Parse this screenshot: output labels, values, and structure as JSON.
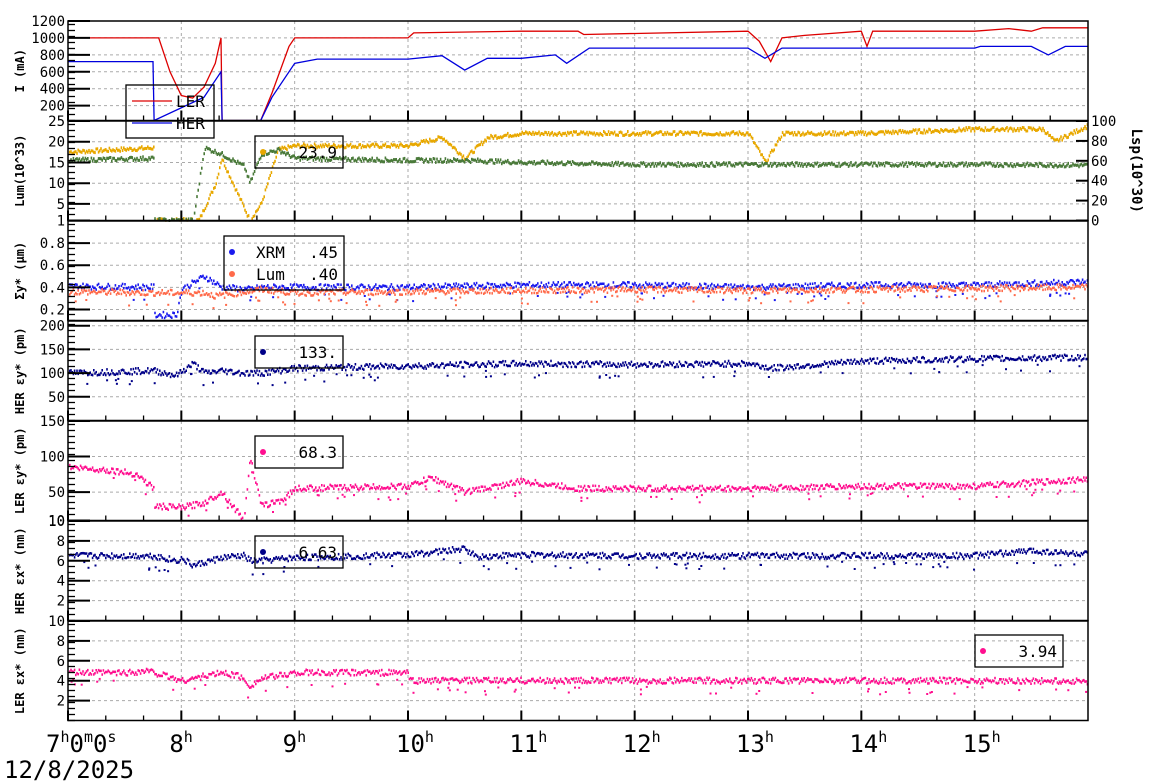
{
  "chart_data": {
    "type": "line",
    "title": "",
    "date": "12/8/2025",
    "xlabel": "",
    "x_range_hours": [
      7,
      16
    ],
    "x_ticks": [
      "7h0m0s",
      "8h",
      "9h",
      "10h",
      "11h",
      "12h",
      "13h",
      "14h",
      "15h"
    ],
    "grid": true,
    "panels": [
      {
        "id": "current",
        "ylabel": "I (mA)",
        "ylim": [
          25,
          1200
        ],
        "yticks": [
          "200",
          "400",
          "600",
          "800",
          "1000",
          "1200"
        ],
        "legend": [
          {
            "name": "LER",
            "color": "#dd0000"
          },
          {
            "name": "HER",
            "color": "#0000dd"
          }
        ],
        "series": [
          {
            "name": "LER",
            "color": "#dd0000",
            "x": [
              7.0,
              7.8,
              7.9,
              8.0,
              8.1,
              8.2,
              8.3,
              8.35,
              8.36,
              8.7,
              8.8,
              8.95,
              9.0,
              10.0,
              10.05,
              11.0,
              11.5,
              11.55,
              13.0,
              13.1,
              13.2,
              13.3,
              13.5,
              14.0,
              14.05,
              14.1,
              15.0,
              15.3,
              15.5,
              15.6,
              16.0
            ],
            "values": [
              1000,
              1000,
              600,
              320,
              290,
              420,
              700,
              1000,
              25,
              25,
              350,
              900,
              1000,
              1000,
              1060,
              1080,
              1080,
              1040,
              1080,
              960,
              720,
              1000,
              1030,
              1080,
              900,
              1080,
              1080,
              1110,
              1080,
              1120,
              1120
            ]
          },
          {
            "name": "HER",
            "color": "#0000dd",
            "x": [
              7.0,
              7.75,
              7.76,
              8.2,
              8.35,
              8.36,
              8.7,
              8.8,
              9.0,
              9.2,
              10.0,
              10.3,
              10.5,
              10.7,
              11.0,
              11.3,
              11.4,
              11.6,
              13.0,
              13.15,
              13.3,
              14.0,
              15.0,
              15.05,
              15.5,
              15.65,
              15.8,
              16.0
            ],
            "values": [
              720,
              720,
              25,
              300,
              600,
              25,
              25,
              300,
              700,
              750,
              750,
              790,
              620,
              760,
              760,
              800,
              700,
              880,
              880,
              760,
              880,
              880,
              880,
              900,
              900,
              800,
              900,
              900
            ]
          }
        ]
      },
      {
        "id": "luminosity",
        "ylabel": "Lum(10^33)",
        "ylim": [
          1,
          25
        ],
        "yticks": [
          "1",
          "5",
          "10",
          "15",
          "20",
          "25"
        ],
        "y2label": "Lsp(10^30)",
        "y2lim": [
          0,
          100
        ],
        "y2ticks": [
          "0",
          "20",
          "40",
          "60",
          "80",
          "100"
        ],
        "legend": [
          {
            "name": "",
            "value": "23.9",
            "color": "#e8a800"
          }
        ],
        "series": [
          {
            "name": "Lum",
            "color": "#e8a800",
            "axis": "left",
            "x": [
              7.0,
              7.75,
              7.76,
              8.15,
              8.3,
              8.35,
              8.6,
              8.7,
              8.85,
              9.0,
              10.0,
              10.3,
              10.5,
              10.7,
              11.0,
              12.0,
              13.0,
              13.15,
              13.3,
              14.0,
              15.0,
              15.6,
              15.7,
              16.0
            ],
            "values": [
              17.5,
              18.5,
              1,
              1,
              10,
              16,
              1,
              5,
              18,
              19,
              19,
              21,
              16,
              21,
              22,
              22,
              22,
              15,
              22,
              22,
              23,
              23,
              20,
              23.9
            ]
          },
          {
            "name": "Lsp",
            "color": "#4a7a3a",
            "axis": "left",
            "x": [
              7.0,
              7.75,
              7.76,
              8.1,
              8.2,
              8.35,
              8.55,
              8.6,
              8.7,
              8.85,
              9.0,
              10.0,
              10.5,
              11.0,
              12.0,
              13.0,
              14.0,
              15.0,
              16.0
            ],
            "values": [
              15.5,
              16,
              1,
              1,
              18.5,
              17,
              14,
              10,
              17,
              18,
              16,
              15.5,
              15.5,
              15,
              14.5,
              14.5,
              14.5,
              14.5,
              14.3
            ]
          }
        ]
      },
      {
        "id": "sigma_y",
        "ylabel": "Σy* (μm)",
        "ylim": [
          0.1,
          1.0
        ],
        "yticks": [
          "0.2",
          "0.4",
          "0.6",
          "0.8"
        ],
        "legend": [
          {
            "name": "XRM",
            "value": ".45",
            "color": "#1a1aee"
          },
          {
            "name": "Lum",
            "value": ".40",
            "color": "#ff6a4a"
          }
        ],
        "series": [
          {
            "name": "XRM",
            "color": "#1a1aee",
            "x": [
              7.0,
              7.75,
              7.76,
              7.95,
              8.0,
              8.2,
              8.35,
              8.6,
              8.7,
              9.0,
              10.0,
              11.0,
              12.0,
              13.0,
              14.0,
              15.0,
              16.0
            ],
            "values": [
              0.41,
              0.4,
              0.15,
              0.15,
              0.38,
              0.5,
              0.4,
              0.38,
              0.4,
              0.4,
              0.4,
              0.42,
              0.42,
              0.4,
              0.42,
              0.42,
              0.45
            ]
          },
          {
            "name": "Lum",
            "color": "#ff6a4a",
            "x": [
              7.0,
              7.75,
              8.2,
              8.3,
              8.7,
              9.0,
              10.0,
              11.0,
              12.0,
              13.0,
              14.0,
              15.0,
              16.0
            ],
            "values": [
              0.36,
              0.35,
              0.35,
              0.32,
              0.38,
              0.35,
              0.36,
              0.37,
              0.38,
              0.37,
              0.38,
              0.39,
              0.4
            ]
          }
        ]
      },
      {
        "id": "her_emit_y",
        "ylabel": "HER εy* (pm)",
        "ylim": [
          0,
          210
        ],
        "yticks": [
          "50",
          "100",
          "150",
          "200"
        ],
        "legend": [
          {
            "name": "",
            "value": "133.",
            "color": "#000088"
          }
        ],
        "series": [
          {
            "name": "HER εy*",
            "color": "#000088",
            "x": [
              7.0,
              7.75,
              7.95,
              8.1,
              8.2,
              8.35,
              8.55,
              8.7,
              9.0,
              10.0,
              11.0,
              12.0,
              13.0,
              13.2,
              14.0,
              15.0,
              16.0
            ],
            "values": [
              100,
              105,
              95,
              120,
              100,
              105,
              100,
              100,
              110,
              115,
              120,
              118,
              120,
              110,
              125,
              130,
              133
            ]
          }
        ]
      },
      {
        "id": "ler_emit_y",
        "ylabel": "LER εy* (pm)",
        "ylim": [
          10,
          150
        ],
        "yticks": [
          "10",
          "50",
          "100",
          "150"
        ],
        "legend": [
          {
            "name": "",
            "value": "68.3",
            "color": "#ff0f8f"
          }
        ],
        "series": [
          {
            "name": "LER εy*",
            "color": "#ff0f8f",
            "x": [
              7.0,
              7.4,
              7.6,
              7.75,
              7.76,
              8.0,
              8.2,
              8.35,
              8.55,
              8.6,
              8.7,
              8.9,
              9.0,
              10.0,
              10.2,
              10.5,
              11.0,
              11.5,
              12.0,
              13.0,
              14.0,
              15.0,
              16.0
            ],
            "values": [
              85,
              80,
              75,
              55,
              30,
              28,
              35,
              50,
              10,
              100,
              30,
              40,
              55,
              58,
              70,
              50,
              65,
              55,
              55,
              55,
              58,
              58,
              68.3
            ]
          }
        ]
      },
      {
        "id": "her_emit_x",
        "ylabel": "HER εx* (nm)",
        "ylim": [
          0,
          10
        ],
        "yticks": [
          "2",
          "4",
          "6",
          "8",
          "10"
        ],
        "legend": [
          {
            "name": "",
            "value": "6.63",
            "color": "#000088"
          }
        ],
        "series": [
          {
            "name": "HER εx*",
            "color": "#000088",
            "x": [
              7.0,
              7.75,
              7.95,
              8.0,
              8.1,
              8.35,
              8.55,
              8.6,
              8.7,
              9.0,
              10.0,
              10.5,
              10.6,
              11.0,
              12.0,
              13.0,
              14.0,
              15.0,
              15.5,
              16.0
            ],
            "values": [
              6.5,
              6.5,
              6.0,
              6.2,
              5.5,
              6.3,
              6.5,
              6.0,
              6.0,
              6.3,
              6.6,
              7.2,
              6.4,
              6.6,
              6.5,
              6.5,
              6.5,
              6.5,
              7.0,
              6.63
            ]
          }
        ]
      },
      {
        "id": "ler_emit_x",
        "ylabel": "LER εx* (nm)",
        "ylim": [
          0,
          10
        ],
        "yticks": [
          "2",
          "4",
          "6",
          "8",
          "10"
        ],
        "legend": [
          {
            "name": "",
            "value": "3.94",
            "color": "#ff0f8f"
          }
        ],
        "series": [
          {
            "name": "LER εx*",
            "color": "#ff0f8f",
            "x": [
              7.0,
              7.5,
              7.7,
              8.0,
              8.35,
              8.5,
              8.6,
              8.7,
              9.0,
              10.0,
              10.01,
              11.0,
              12.0,
              13.0,
              14.0,
              15.0,
              16.0
            ],
            "values": [
              4.8,
              4.8,
              5.0,
              4.0,
              4.8,
              4.5,
              3.5,
              4.2,
              4.8,
              4.8,
              4.0,
              4.0,
              4.0,
              4.0,
              4.0,
              4.0,
              3.94
            ]
          }
        ]
      }
    ]
  }
}
